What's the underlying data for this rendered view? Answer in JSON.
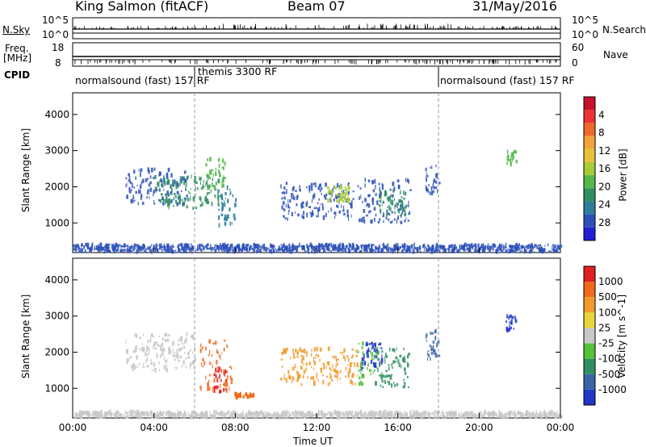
{
  "header": {
    "station": "King Salmon (fitACF)",
    "beam": "Beam 07",
    "date": "31/May/2016"
  },
  "noise_panel": {
    "left_label": "N.Sky",
    "left_ticks": [
      "10^5",
      "10^0"
    ],
    "right_label": "N.Search",
    "right_ticks": [
      "10^5",
      "10^0"
    ]
  },
  "freq_panel": {
    "left_label_line1": "Freq.",
    "left_label_line2": "[MHz]",
    "left_ticks": [
      "18",
      "8"
    ],
    "right_label": "Nave",
    "right_ticks": [
      "60",
      "0"
    ]
  },
  "cpid": {
    "label": "CPID",
    "segments": [
      {
        "text": "normalsound (fast) 157 RF",
        "start_h": 0,
        "end_h": 6
      },
      {
        "text": "themis 3300 RF",
        "start_h": 6,
        "end_h": 18
      },
      {
        "text": "normalsound (fast) 157 RF",
        "start_h": 18,
        "end_h": 24
      }
    ]
  },
  "x_axis": {
    "label": "Time UT",
    "ticks": [
      "00:00",
      "04:00",
      "08:00",
      "12:00",
      "16:00",
      "20:00",
      "00:00"
    ],
    "tick_hours": [
      0,
      4,
      8,
      12,
      16,
      20,
      24
    ],
    "dashed_markers_h": [
      6,
      18
    ]
  },
  "chart_data": [
    {
      "type": "heatmap",
      "title": "Power",
      "ylabel": "Slant Range [km]",
      "yticks": [
        1000,
        2000,
        3000,
        4000
      ],
      "ylim": [
        180,
        4600
      ],
      "xlim_hours": [
        0,
        24
      ],
      "colorbar_label": "Power [dB]",
      "colorbar_ticks": [
        "4",
        "8",
        "12",
        "16",
        "20",
        "24",
        "28"
      ],
      "colorbar_colors": [
        "#1f1fd6",
        "#2d50b8",
        "#2f7e9a",
        "#2f8f61",
        "#55b94a",
        "#a6cc3a",
        "#e8c23a",
        "#f2a43a",
        "#ef6a2a",
        "#e33",
        "#c8102e"
      ],
      "echo_regions": [
        {
          "t0": 2.6,
          "t1": 5.6,
          "r0": 1500,
          "r1": 2500,
          "color": "#2d50b8"
        },
        {
          "t0": 4.0,
          "t1": 7.2,
          "r0": 1400,
          "r1": 2300,
          "color": "#2f8f61"
        },
        {
          "t0": 6.5,
          "t1": 7.5,
          "r0": 1900,
          "r1": 2800,
          "color": "#55b94a"
        },
        {
          "t0": 7.0,
          "t1": 8.0,
          "r0": 900,
          "r1": 2000,
          "color": "#2f7e9a"
        },
        {
          "t0": 10.2,
          "t1": 13.8,
          "r0": 1100,
          "r1": 2100,
          "color": "#2d50b8"
        },
        {
          "t0": 12.5,
          "t1": 13.6,
          "r0": 1600,
          "r1": 2000,
          "color": "#a6cc3a"
        },
        {
          "t0": 14.0,
          "t1": 16.6,
          "r0": 1000,
          "r1": 2200,
          "color": "#2d50b8"
        },
        {
          "t0": 15.0,
          "t1": 16.4,
          "r0": 1200,
          "r1": 1900,
          "color": "#2f8f61"
        },
        {
          "t0": 0.0,
          "t1": 24.0,
          "r0": 200,
          "r1": 400,
          "color": "#2d50b8"
        },
        {
          "t0": 21.3,
          "t1": 21.8,
          "r0": 2600,
          "r1": 3000,
          "color": "#55b94a"
        },
        {
          "t0": 17.3,
          "t1": 18.0,
          "r0": 1800,
          "r1": 2600,
          "color": "#2d50b8"
        }
      ]
    },
    {
      "type": "heatmap",
      "title": "Velocity",
      "ylabel": "Slant Range [km]",
      "yticks": [
        1000,
        2000,
        3000,
        4000
      ],
      "ylim": [
        180,
        4600
      ],
      "xlim_hours": [
        0,
        24
      ],
      "colorbar_label": "Velocity [m s^-1]",
      "colorbar_ticks": [
        "1000",
        "500",
        "100",
        "25",
        "-25",
        "-100",
        "-500",
        "-1000"
      ],
      "colorbar_colors": [
        "#2336c8",
        "#3a63a8",
        "#2f8f61",
        "#55c23a",
        "#c8c8c8",
        "#e8d63a",
        "#f29a2a",
        "#ef6a1a",
        "#e02020"
      ],
      "echo_regions": [
        {
          "t0": 2.6,
          "t1": 6.0,
          "r0": 1500,
          "r1": 2500,
          "color": "#c8c8c8"
        },
        {
          "t0": 6.2,
          "t1": 7.8,
          "r0": 900,
          "r1": 2400,
          "color": "#ef6a1a"
        },
        {
          "t0": 6.9,
          "t1": 7.6,
          "r0": 900,
          "r1": 1600,
          "color": "#e02020"
        },
        {
          "t0": 7.9,
          "t1": 8.9,
          "r0": 750,
          "r1": 850,
          "color": "#ef6a1a"
        },
        {
          "t0": 10.2,
          "t1": 14.0,
          "r0": 1100,
          "r1": 2100,
          "color": "#f29a2a"
        },
        {
          "t0": 14.0,
          "t1": 15.0,
          "r0": 1100,
          "r1": 2300,
          "color": "#55c23a"
        },
        {
          "t0": 14.8,
          "t1": 16.6,
          "r0": 1000,
          "r1": 2100,
          "color": "#2f8f61"
        },
        {
          "t0": 14.2,
          "t1": 15.2,
          "r0": 1500,
          "r1": 2300,
          "color": "#2336c8"
        },
        {
          "t0": 0.0,
          "t1": 24.0,
          "r0": 200,
          "r1": 350,
          "color": "#c8c8c8"
        },
        {
          "t0": 21.3,
          "t1": 21.8,
          "r0": 2600,
          "r1": 3000,
          "color": "#2336c8"
        },
        {
          "t0": 17.3,
          "t1": 18.0,
          "r0": 1800,
          "r1": 2600,
          "color": "#3a63a8"
        }
      ]
    }
  ]
}
